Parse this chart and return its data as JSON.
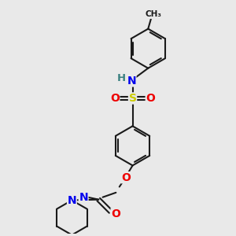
{
  "bg_color": "#e9e9e9",
  "bond_color": "#1a1a1a",
  "atom_colors": {
    "N": "#0000ee",
    "O": "#ee0000",
    "S": "#cccc00",
    "H": "#3a8080",
    "C": "#1a1a1a"
  },
  "figsize": [
    3.0,
    3.0
  ],
  "dpi": 100,
  "lw": 1.5,
  "fs": 9.5
}
